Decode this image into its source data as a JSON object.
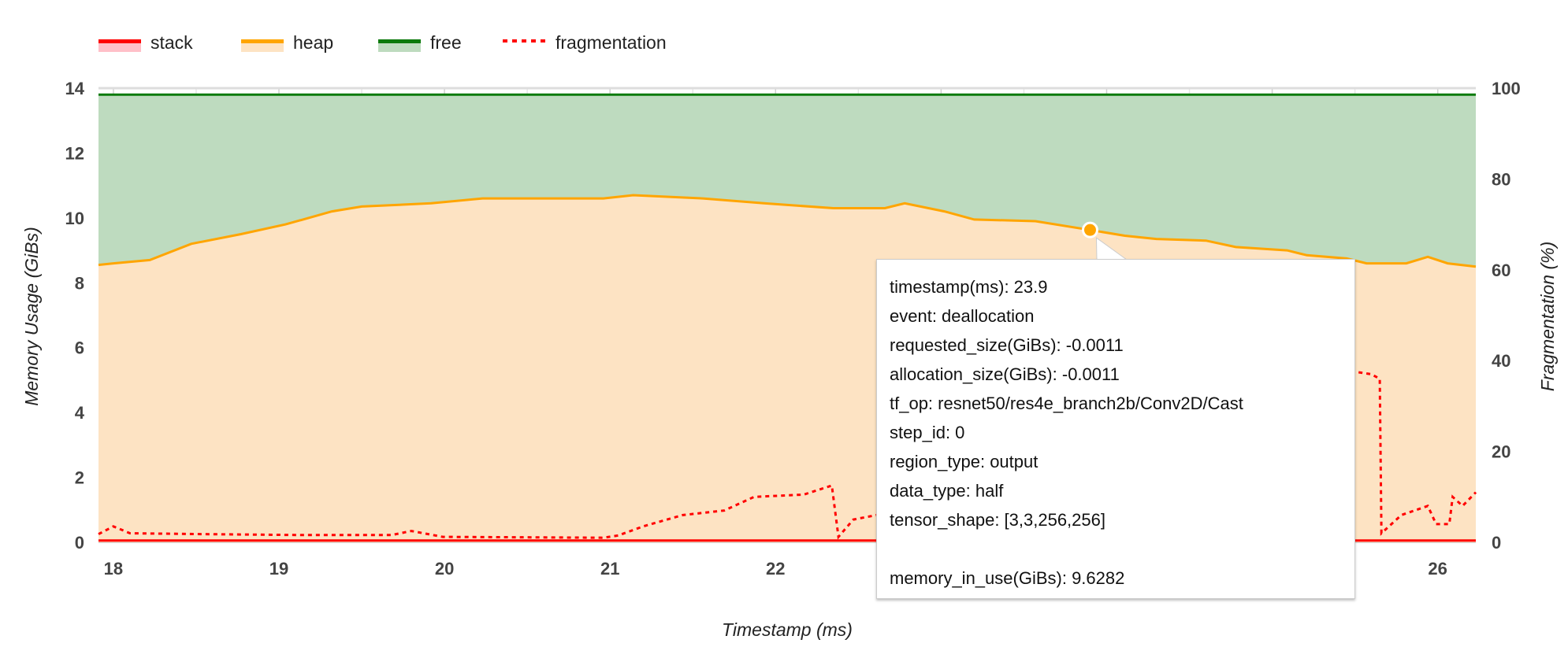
{
  "chart_data": {
    "type": "area",
    "title": "",
    "xlabel": "Timestamp (ms)",
    "ylabel": "Memory Usage (GiBs)",
    "y2label": "Fragmentation (%)",
    "xlim": [
      17.91,
      26.23
    ],
    "ylim": [
      0,
      14
    ],
    "y2lim": [
      0,
      100
    ],
    "xticks": [
      18,
      19,
      20,
      21,
      22,
      23,
      24,
      25,
      26
    ],
    "xtick_labels_visible": [
      "18",
      "19",
      "20",
      "21",
      "22",
      "26"
    ],
    "yticks": [
      "0",
      "2",
      "4",
      "6",
      "8",
      "10",
      "12",
      "14"
    ],
    "y2ticks": [
      "0",
      "20",
      "40",
      "60",
      "80",
      "100"
    ],
    "grid": true,
    "legend_position": "top-left",
    "legend": [
      {
        "name": "stack",
        "color": "#ff0000",
        "fill": "#ffc0c8",
        "style": "solid"
      },
      {
        "name": "heap",
        "color": "#ffa500",
        "fill": "#fde3c3",
        "style": "solid"
      },
      {
        "name": "free",
        "color": "#0b7a0b",
        "fill": "#bedbbf",
        "style": "solid"
      },
      {
        "name": "fragmentation",
        "color": "#ff0000",
        "style": "dotted"
      }
    ],
    "series": [
      {
        "name": "stack",
        "axis": "left",
        "x": [
          17.91,
          26.23
        ],
        "values": [
          0.03,
          0.03
        ]
      },
      {
        "name": "heap",
        "axis": "left",
        "x": [
          17.91,
          18.0,
          18.22,
          18.47,
          18.77,
          19.04,
          19.32,
          19.5,
          19.92,
          20.23,
          20.96,
          21.14,
          21.56,
          21.93,
          22.35,
          22.66,
          22.78,
          23.02,
          23.2,
          23.57,
          23.9,
          24.11,
          24.3,
          24.6,
          24.78,
          25.09,
          25.21,
          25.45,
          25.57,
          25.81,
          25.94,
          26.06,
          26.23
        ],
        "values": [
          8.55,
          8.6,
          8.7,
          9.2,
          9.5,
          9.8,
          10.2,
          10.35,
          10.45,
          10.6,
          10.6,
          10.7,
          10.6,
          10.45,
          10.3,
          10.3,
          10.45,
          10.2,
          9.95,
          9.9,
          9.6282,
          9.45,
          9.35,
          9.3,
          9.1,
          9.0,
          8.85,
          8.75,
          8.6,
          8.6,
          8.8,
          8.6,
          8.5
        ]
      },
      {
        "name": "free",
        "axis": "left",
        "x": [
          17.91,
          26.23
        ],
        "values": [
          13.8,
          13.8
        ]
      },
      {
        "name": "fragmentation",
        "axis": "right",
        "x": [
          17.91,
          18.0,
          18.1,
          18.53,
          19.14,
          19.68,
          19.8,
          19.99,
          20.96,
          21.05,
          21.2,
          21.44,
          21.69,
          21.87,
          22.17,
          22.34,
          22.38,
          22.47,
          22.61,
          25.0,
          25.51,
          25.6,
          25.65,
          25.66,
          25.78,
          25.94,
          25.99,
          26.07,
          26.09,
          26.15,
          26.23
        ],
        "values": [
          1.8,
          3.5,
          2.0,
          1.8,
          1.6,
          1.6,
          2.5,
          1.2,
          1.0,
          1.5,
          3.5,
          6,
          7,
          10,
          10.5,
          12.5,
          1.2,
          5,
          6,
          30,
          37.5,
          37,
          36,
          2,
          6,
          8,
          4,
          4,
          10,
          8,
          11
        ]
      }
    ],
    "hover_point": {
      "x": 23.9,
      "y": 9.6282,
      "series": "heap"
    }
  },
  "tooltip": {
    "lines": [
      "timestamp(ms): 23.9",
      "event: deallocation",
      "requested_size(GiBs): -0.0011",
      "allocation_size(GiBs): -0.0011",
      "tf_op: resnet50/res4e_branch2b/Conv2D/Cast",
      "step_id: 0",
      "region_type: output",
      "data_type: half",
      "tensor_shape: [3,3,256,256]"
    ],
    "footer": "memory_in_use(GiBs): 9.6282"
  }
}
